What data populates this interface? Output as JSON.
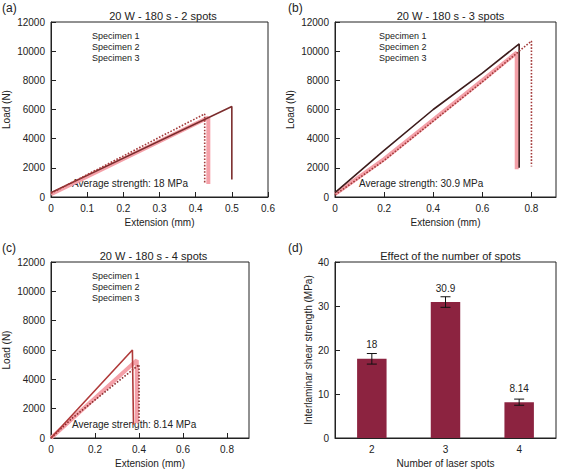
{
  "chart_data": [
    {
      "type": "line",
      "panel": "(a)",
      "title": "20 W - 180 s - 2 spots",
      "x_label": "Extension (mm)",
      "y_label": "Load (N)",
      "annotation": "Average strength: 18 MPa",
      "xlim": [
        0,
        0.6
      ],
      "xticks": [
        0,
        0.1,
        0.2,
        0.3,
        0.4,
        0.5,
        0.6
      ],
      "ylim": [
        0,
        12000
      ],
      "yticks": [
        0,
        2000,
        4000,
        6000,
        8000,
        10000,
        12000
      ],
      "grid": false,
      "legend": "upper left",
      "series": [
        {
          "name": "Specimen 1",
          "color": "#f4a0a8",
          "line_style": "solid",
          "x": [
            0,
            0.435,
            0.435
          ],
          "values": [
            200,
            5450,
            900
          ]
        },
        {
          "name": "Specimen 2",
          "color": "#7b2d2d",
          "line_style": "solid",
          "x": [
            0,
            0.5,
            0.5
          ],
          "values": [
            300,
            6200,
            1200
          ]
        },
        {
          "name": "Specimen 3",
          "color": "#a33a3a",
          "line_style": "dotted",
          "x": [
            0,
            0.425,
            0.425
          ],
          "values": [
            250,
            5700,
            1000
          ]
        }
      ]
    },
    {
      "type": "line",
      "panel": "(b)",
      "title": "20 W - 180 s - 3 spots",
      "x_label": "Extension (mm)",
      "y_label": "Load (N)",
      "annotation": "Average strength: 30.9 MPa",
      "xlim": [
        0,
        0.9
      ],
      "xticks": [
        0,
        0.2,
        0.4,
        0.6,
        0.8
      ],
      "ylim": [
        0,
        12000
      ],
      "yticks": [
        0,
        2000,
        4000,
        6000,
        8000,
        10000,
        12000
      ],
      "grid": false,
      "legend": "upper left",
      "series": [
        {
          "name": "Specimen 1",
          "color": "#f4a0a8",
          "line_style": "solid",
          "x": [
            0,
            0.2,
            0.4,
            0.6,
            0.74,
            0.74
          ],
          "values": [
            200,
            2600,
            5300,
            8000,
            9900,
            1900
          ]
        },
        {
          "name": "Specimen 2",
          "color": "#3d1c1c",
          "line_style": "solid",
          "x": [
            0,
            0.2,
            0.4,
            0.6,
            0.75,
            0.75
          ],
          "values": [
            300,
            3200,
            6000,
            8500,
            10500,
            2000
          ]
        },
        {
          "name": "Specimen 3",
          "color": "#a33a3a",
          "line_style": "dotted",
          "x": [
            0,
            0.2,
            0.4,
            0.6,
            0.8,
            0.8
          ],
          "values": [
            150,
            2500,
            5200,
            7900,
            10700,
            2100
          ]
        }
      ]
    },
    {
      "type": "line",
      "panel": "(c)",
      "title": "20 W - 180 s - 4 spots",
      "x_label": "Extension (mm)",
      "y_label": "Load (N)",
      "annotation": "Average strength: 8.14 MPa",
      "xlim": [
        0,
        0.9
      ],
      "xticks": [
        0,
        0.2,
        0.4,
        0.6,
        0.8
      ],
      "ylim": [
        0,
        12000
      ],
      "yticks": [
        0,
        2000,
        4000,
        6000,
        8000,
        10000,
        12000
      ],
      "grid": false,
      "legend": "upper left",
      "series": [
        {
          "name": "Specimen 1",
          "color": "#f4a0a8",
          "line_style": "solid",
          "x": [
            0,
            0.39,
            0.39
          ],
          "values": [
            0,
            5300,
            1000
          ]
        },
        {
          "name": "Specimen 2",
          "color": "#8b2c2c",
          "line_style": "dotted",
          "x": [
            0,
            0.1,
            0.4,
            0.4
          ],
          "values": [
            0,
            1400,
            5000,
            1100
          ]
        },
        {
          "name": "Specimen 3",
          "color": "#b03a3a",
          "line_style": "solid",
          "x": [
            0,
            0.37,
            0.375
          ],
          "values": [
            0,
            6000,
            900
          ]
        }
      ]
    },
    {
      "type": "bar",
      "panel": "(d)",
      "title": "Effect of the number of spots",
      "x_label": "Number of laser spots",
      "y_label": "Interlaminar shear strength (MPa)",
      "categories": [
        "2",
        "3",
        "4"
      ],
      "values": [
        18,
        30.9,
        8.14
      ],
      "errors": [
        1.2,
        1.2,
        0.7
      ],
      "color": "#8c2340",
      "ylim": [
        0,
        40
      ],
      "yticks": [
        0,
        10,
        20,
        30,
        40
      ],
      "grid": false,
      "data_labels": true
    }
  ]
}
